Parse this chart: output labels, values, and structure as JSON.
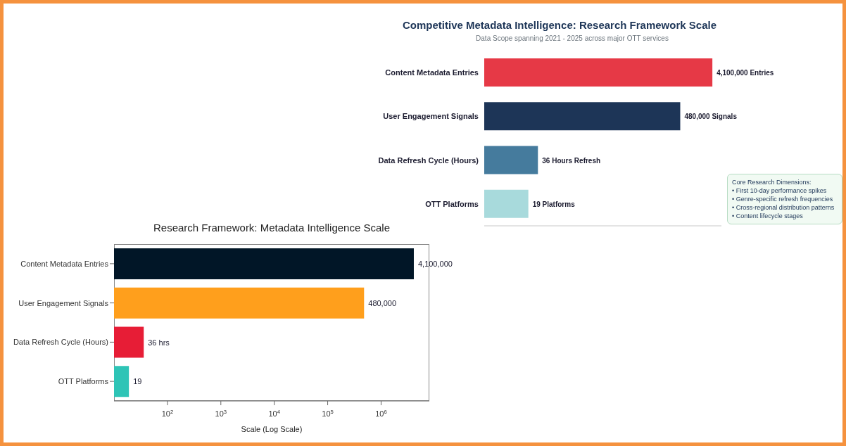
{
  "chart_data": [
    {
      "type": "bar",
      "orientation": "horizontal",
      "title": "Competitive Metadata Intelligence: Research Framework Scale",
      "subtitle": "Data Scope spanning 2021 - 2025 across major OTT services",
      "categories": [
        "Content Metadata Entries",
        "User Engagement Signals",
        "Data Refresh Cycle (Hours)",
        "OTT Platforms"
      ],
      "values": [
        4100000,
        480000,
        36,
        19
      ],
      "colors": [
        "#e63946",
        "#1d3557",
        "#457b9d",
        "#a8dadc"
      ],
      "value_labels": [
        "4,100,000 Entries",
        "480,000 Signals",
        "36 Hours Refresh",
        "19 Platforms"
      ],
      "log": "x",
      "xlim": [
        1,
        7500000
      ],
      "tick_labels": "y",
      "annotations": [
        "Core Research Dimensions:",
        "• First 10-day performance spikes",
        "• Genre-specific refresh frequencies",
        "• Cross-regional distribution patterns",
        "• Content lifecycle stages"
      ]
    },
    {
      "type": "bar",
      "orientation": "horizontal",
      "title": "Research Framework: Metadata Intelligence Scale",
      "xlabel": "Scale (Log Scale)",
      "categories": [
        "Content Metadata Entries",
        "User Engagement Signals",
        "Data Refresh Cycle (Hours)",
        "OTT Platforms"
      ],
      "values": [
        4100000,
        480000,
        36,
        19
      ],
      "colors": [
        "#011627",
        "#ff9f1c",
        "#e71d36",
        "#2ec4b6"
      ],
      "value_labels": [
        "4,100,000",
        "480,000",
        "36 hrs",
        "19"
      ],
      "log": "x",
      "xlim": [
        10,
        8000000
      ],
      "xticks": [
        {
          "value": 100,
          "label": "10$^{2}$"
        },
        {
          "value": 1000,
          "label": "10$^{3}$"
        },
        {
          "value": 10000,
          "label": "10$^{4}$"
        },
        {
          "value": 100000,
          "label": "10$^{5}$"
        },
        {
          "value": 1000000,
          "label": "10$^{6}$"
        }
      ]
    }
  ]
}
